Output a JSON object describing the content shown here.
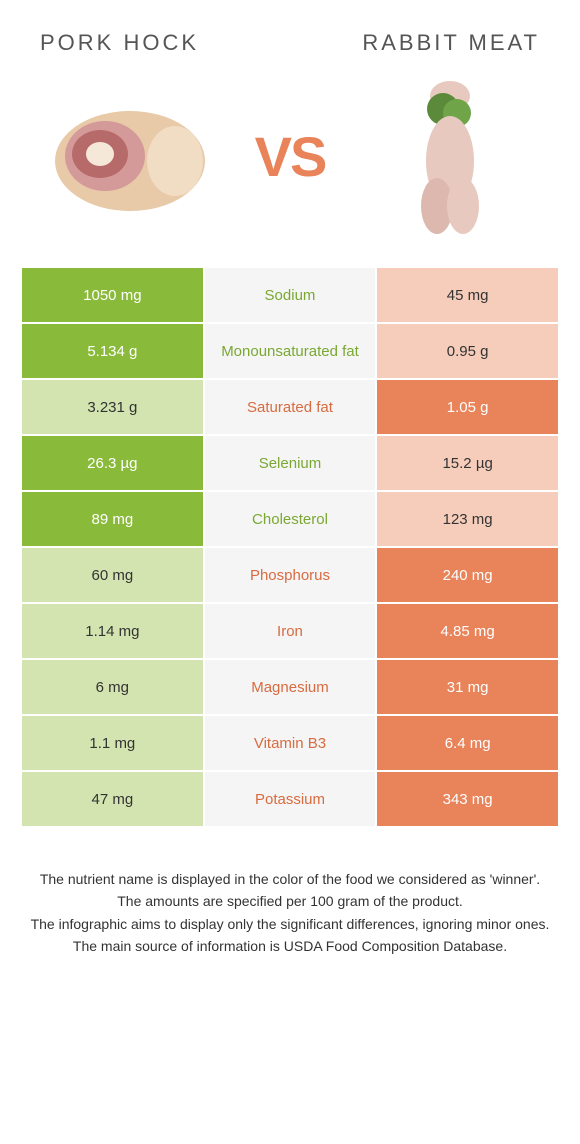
{
  "header": {
    "left_title": "Pork hock",
    "right_title": "Rabbit meat",
    "vs": "VS"
  },
  "colors": {
    "left_primary": "#8aba3a",
    "left_dim": "#d3e4b0",
    "right_primary": "#e8835a",
    "right_dim": "#f6cdbb",
    "mid_bg": "#f5f5f5",
    "nutrient_green": "#7aa832",
    "nutrient_orange": "#d86b40"
  },
  "rows": [
    {
      "nutrient": "Sodium",
      "left": "1050 mg",
      "right": "45 mg",
      "winner": "left"
    },
    {
      "nutrient": "Monounsaturated fat",
      "left": "5.134 g",
      "right": "0.95 g",
      "winner": "left"
    },
    {
      "nutrient": "Saturated fat",
      "left": "3.231 g",
      "right": "1.05 g",
      "winner": "right"
    },
    {
      "nutrient": "Selenium",
      "left": "26.3 µg",
      "right": "15.2 µg",
      "winner": "left"
    },
    {
      "nutrient": "Cholesterol",
      "left": "89 mg",
      "right": "123 mg",
      "winner": "left"
    },
    {
      "nutrient": "Phosphorus",
      "left": "60 mg",
      "right": "240 mg",
      "winner": "right"
    },
    {
      "nutrient": "Iron",
      "left": "1.14 mg",
      "right": "4.85 mg",
      "winner": "right"
    },
    {
      "nutrient": "Magnesium",
      "left": "6 mg",
      "right": "31 mg",
      "winner": "right"
    },
    {
      "nutrient": "Vitamin B3",
      "left": "1.1 mg",
      "right": "6.4 mg",
      "winner": "right"
    },
    {
      "nutrient": "Potassium",
      "left": "47 mg",
      "right": "343 mg",
      "winner": "right"
    }
  ],
  "footer": {
    "line1": "The nutrient name is displayed in the color of the food we considered as 'winner'.",
    "line2": "The amounts are specified per 100 gram of the product.",
    "line3": "The infographic aims to display only the significant differences, ignoring minor ones.",
    "line4": "The main source of information is USDA Food Composition Database."
  }
}
